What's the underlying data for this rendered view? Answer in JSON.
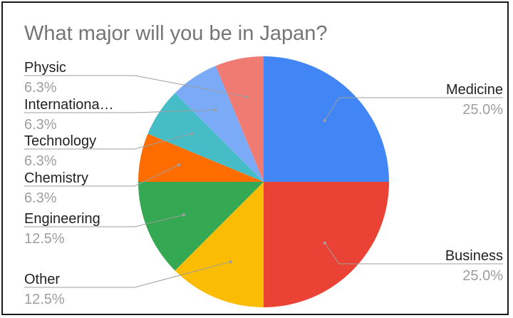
{
  "chart_data": {
    "type": "pie",
    "title": "What major will you be in Japan?",
    "slices": [
      {
        "label": "Medicine",
        "percent_label": "25.0%",
        "value": 25.0,
        "color": "#4285F4"
      },
      {
        "label": "Business",
        "percent_label": "25.0%",
        "value": 25.0,
        "color": "#EA4335"
      },
      {
        "label": "Other",
        "percent_label": "12.5%",
        "value": 12.5,
        "color": "#FBBC04"
      },
      {
        "label": "Engineering",
        "percent_label": "12.5%",
        "value": 12.5,
        "color": "#34A853"
      },
      {
        "label": "Chemistry",
        "percent_label": "6.3%",
        "value": 6.25,
        "color": "#FF6D01"
      },
      {
        "label": "Technology",
        "percent_label": "6.3%",
        "value": 6.25,
        "color": "#46BDC6"
      },
      {
        "label": "Internationa…",
        "percent_label": "6.3%",
        "value": 6.25,
        "color": "#7BAAF7"
      },
      {
        "label": "Physic",
        "percent_label": "6.3%",
        "value": 6.25,
        "color": "#F07B72"
      }
    ],
    "legend": "none",
    "label_style": "outside-with-leader-lines"
  }
}
